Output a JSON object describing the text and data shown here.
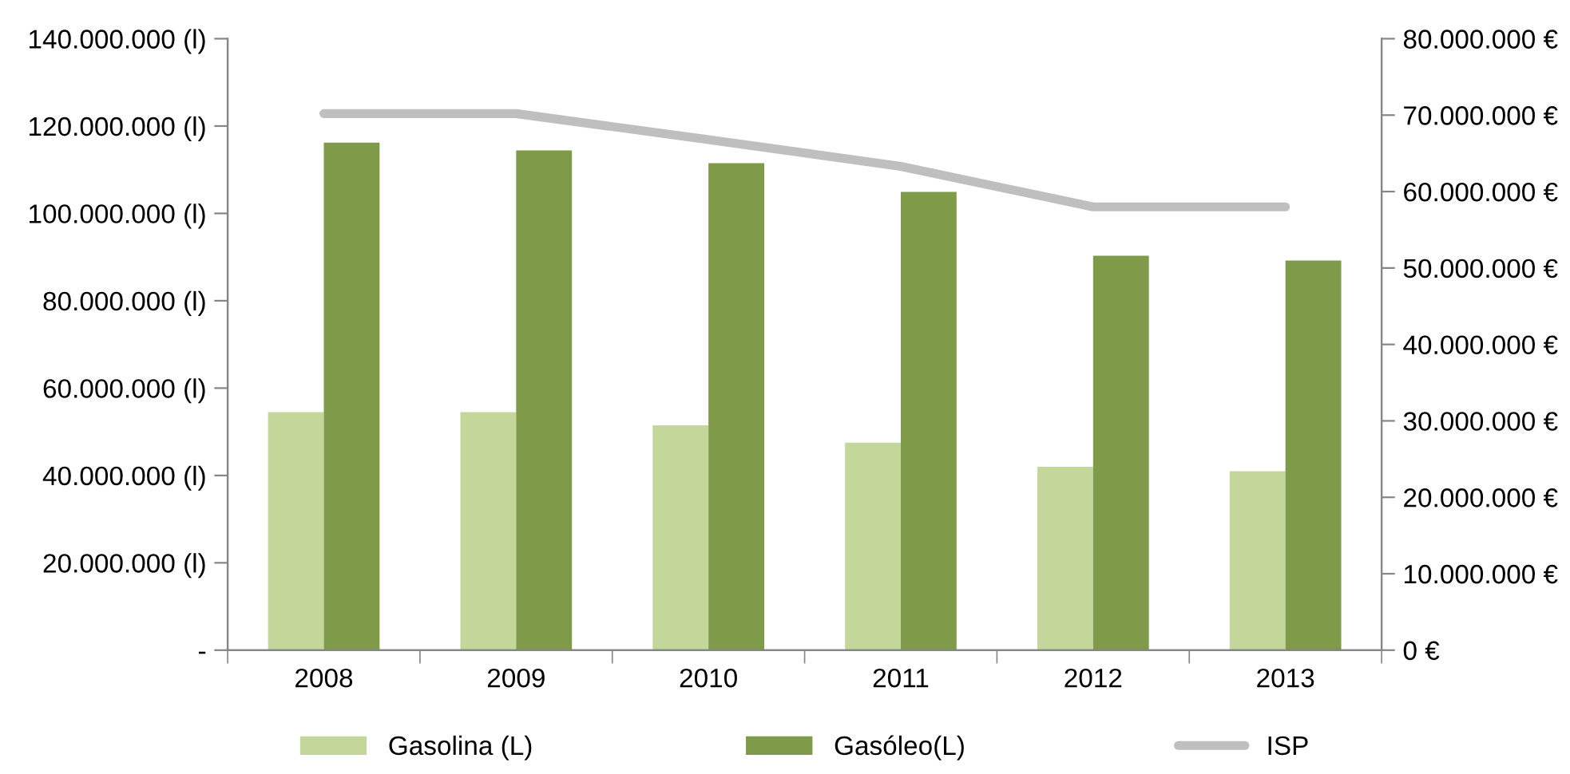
{
  "chart_data": {
    "type": "bar",
    "categories": [
      "2008",
      "2009",
      "2010",
      "2011",
      "2012",
      "2013"
    ],
    "series": [
      {
        "name": "Gasolina (L)",
        "color": "#c4d79b",
        "values": [
          54500000,
          54500000,
          51500000,
          47500000,
          42000000,
          41000000
        ]
      },
      {
        "name": "Gasóleo(L)",
        "color": "#7f9a48",
        "values": [
          116200000,
          114400000,
          111500000,
          104900000,
          90300000,
          89200000
        ]
      },
      {
        "name": "ISP",
        "type": "line",
        "axis": "y2",
        "color": "#bfbfbf",
        "values": [
          70200000,
          70200000,
          66800000,
          63300000,
          58000000,
          58000000
        ]
      }
    ],
    "ylim": [
      0,
      140000000
    ],
    "yticks": [
      {
        "value": 0,
        "label": "-"
      },
      {
        "value": 20000000,
        "label": "20.000.000 (l)"
      },
      {
        "value": 40000000,
        "label": "40.000.000 (l)"
      },
      {
        "value": 60000000,
        "label": "60.000.000 (l)"
      },
      {
        "value": 80000000,
        "label": "80.000.000 (l)"
      },
      {
        "value": 100000000,
        "label": "100.000.000 (l)"
      },
      {
        "value": 120000000,
        "label": "120.000.000 (l)"
      },
      {
        "value": 140000000,
        "label": "140.000.000 (l)"
      }
    ],
    "y2lim": [
      0,
      80000000
    ],
    "y2ticks": [
      {
        "value": 0,
        "label": "0 €"
      },
      {
        "value": 10000000,
        "label": "10.000.000 €"
      },
      {
        "value": 20000000,
        "label": "20.000.000 €"
      },
      {
        "value": 30000000,
        "label": "30.000.000 €"
      },
      {
        "value": 40000000,
        "label": "40.000.000 €"
      },
      {
        "value": 50000000,
        "label": "50.000.000 €"
      },
      {
        "value": 60000000,
        "label": "60.000.000 €"
      },
      {
        "value": 70000000,
        "label": "70.000.000 €"
      },
      {
        "value": 80000000,
        "label": "80.000.000 €"
      }
    ],
    "grid": false,
    "legend": "bottom"
  }
}
